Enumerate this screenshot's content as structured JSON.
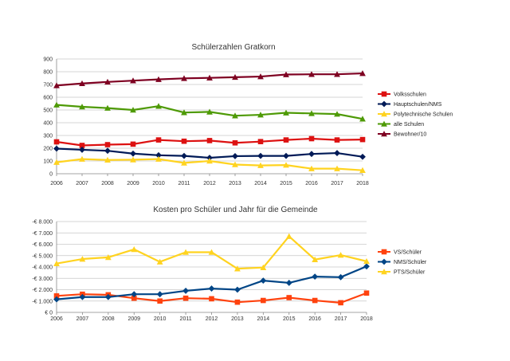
{
  "chart_data": [
    {
      "type": "line",
      "title": "Schülerzahlen Gratkorn",
      "xlabel": "",
      "ylabel": "",
      "categories": [
        "2006",
        "2007",
        "2008",
        "2009",
        "2010",
        "2011",
        "2012",
        "2013",
        "2014",
        "2015",
        "2016",
        "2017",
        "2018"
      ],
      "ylim": [
        0,
        900
      ],
      "yticks": [
        0,
        100,
        200,
        300,
        400,
        500,
        600,
        700,
        800,
        900
      ],
      "ytick_labels": [
        "0",
        "100",
        "200",
        "300",
        "400",
        "500",
        "600",
        "700",
        "800",
        "900"
      ],
      "grid": true,
      "legend_position": "right",
      "series": [
        {
          "name": "Volksschulen",
          "color": "#dd1111",
          "marker": "square",
          "values": [
            250,
            222,
            228,
            232,
            265,
            255,
            260,
            242,
            252,
            265,
            275,
            265,
            268
          ]
        },
        {
          "name": "Hauptschulen/NMS",
          "color": "#001a57",
          "marker": "diamond",
          "values": [
            197,
            188,
            180,
            158,
            145,
            140,
            125,
            138,
            140,
            140,
            155,
            162,
            133
          ]
        },
        {
          "name": "Polytechnische Schulen",
          "color": "#ffd320",
          "marker": "triangle",
          "values": [
            90,
            115,
            108,
            110,
            115,
            85,
            100,
            72,
            65,
            68,
            40,
            40,
            27
          ]
        },
        {
          "name": "alle Schulen",
          "color": "#4e9a06",
          "marker": "triangle",
          "values": [
            540,
            525,
            515,
            500,
            530,
            480,
            485,
            455,
            462,
            478,
            473,
            468,
            430
          ]
        },
        {
          "name": "Bewohner/10",
          "color": "#7e0021",
          "marker": "triangle",
          "values": [
            692,
            708,
            720,
            730,
            740,
            748,
            752,
            757,
            762,
            778,
            780,
            780,
            787
          ]
        }
      ]
    },
    {
      "type": "line",
      "title": "Kosten pro Schüler und Jahr für die Gemeinde",
      "xlabel": "",
      "ylabel": "",
      "categories": [
        "2006",
        "2007",
        "2008",
        "2009",
        "2010",
        "2011",
        "2012",
        "2013",
        "2014",
        "2015",
        "2016",
        "2017",
        "2018"
      ],
      "ylim": [
        0,
        8000
      ],
      "yticks": [
        0,
        1000,
        2000,
        3000,
        4000,
        5000,
        6000,
        7000,
        8000
      ],
      "ytick_labels": [
        "€ 0",
        "-€ 1.000",
        "-€ 2.000",
        "-€ 3.000",
        "-€ 4.000",
        "-€ 5.000",
        "-€ 6.000",
        "-€ 7.000",
        "-€ 8.000"
      ],
      "grid": true,
      "legend_position": "right",
      "series": [
        {
          "name": "VS/Schüler",
          "color": "#ff420e",
          "marker": "square",
          "values": [
            1450,
            1600,
            1550,
            1250,
            1000,
            1250,
            1200,
            900,
            1050,
            1300,
            1050,
            850,
            1700
          ]
        },
        {
          "name": "NMS/Schüler",
          "color": "#004586",
          "marker": "diamond",
          "values": [
            1150,
            1350,
            1350,
            1600,
            1600,
            1900,
            2100,
            2000,
            2800,
            2600,
            3150,
            3100,
            4050
          ]
        },
        {
          "name": "PTS/Schüler",
          "color": "#ffd320",
          "marker": "triangle",
          "values": [
            4300,
            4700,
            4850,
            5550,
            4450,
            5300,
            5300,
            3850,
            3950,
            6700,
            4650,
            5050,
            4500
          ]
        }
      ]
    }
  ]
}
